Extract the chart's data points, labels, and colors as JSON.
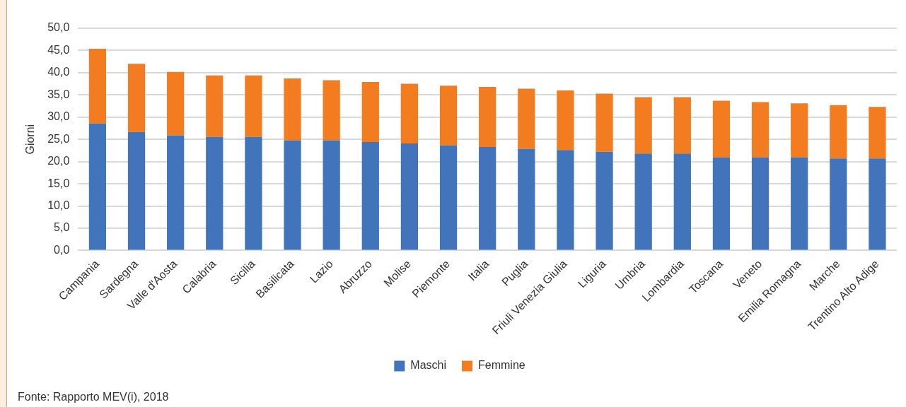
{
  "chart_data": {
    "type": "bar",
    "stacked": true,
    "ylabel": "Giorni",
    "categories": [
      "Campania",
      "Sardegna",
      "Valle d'Aosta",
      "Calabria",
      "Sicilia",
      "Basilicata",
      "Lazio",
      "Abruzzo",
      "Molise",
      "Piemonte",
      "Italia",
      "Puglia",
      "Friuli Venezia Giulia",
      "Liguria",
      "Umbria",
      "Lombardia",
      "Toscana",
      "Veneto",
      "Emilia Romagna",
      "Marche",
      "Trentino Alto Adige"
    ],
    "series": [
      {
        "name": "Maschi",
        "color": "#4174ba",
        "values": [
          28.6,
          26.7,
          25.9,
          25.6,
          25.6,
          24.8,
          24.8,
          24.4,
          24.1,
          23.7,
          23.3,
          22.9,
          22.6,
          22.2,
          21.8,
          21.8,
          21.0,
          21.0,
          21.0,
          20.7,
          20.7
        ]
      },
      {
        "name": "Femmine",
        "color": "#f47c20",
        "values": [
          16.8,
          15.3,
          14.3,
          13.8,
          13.8,
          13.9,
          13.5,
          13.5,
          13.4,
          13.4,
          13.5,
          13.5,
          13.4,
          13.1,
          12.7,
          12.7,
          12.7,
          12.4,
          12.1,
          12.0,
          11.6
        ]
      }
    ],
    "ylim": [
      0,
      50
    ],
    "yticks": [
      {
        "value": 0,
        "label": "0,0"
      },
      {
        "value": 5,
        "label": "5,0"
      },
      {
        "value": 10,
        "label": "10,0"
      },
      {
        "value": 15,
        "label": "15,0"
      },
      {
        "value": 20,
        "label": "20,0"
      },
      {
        "value": 25,
        "label": "25,0"
      },
      {
        "value": 30,
        "label": "30,0"
      },
      {
        "value": 35,
        "label": "35,0"
      },
      {
        "value": 40,
        "label": "40,0"
      },
      {
        "value": 45,
        "label": "45,0"
      },
      {
        "value": 50,
        "label": "50,0"
      }
    ],
    "grid": "y",
    "legend": "bottom",
    "annotations": [
      "Fonte: Rapporto MEV(i), 2018"
    ]
  }
}
